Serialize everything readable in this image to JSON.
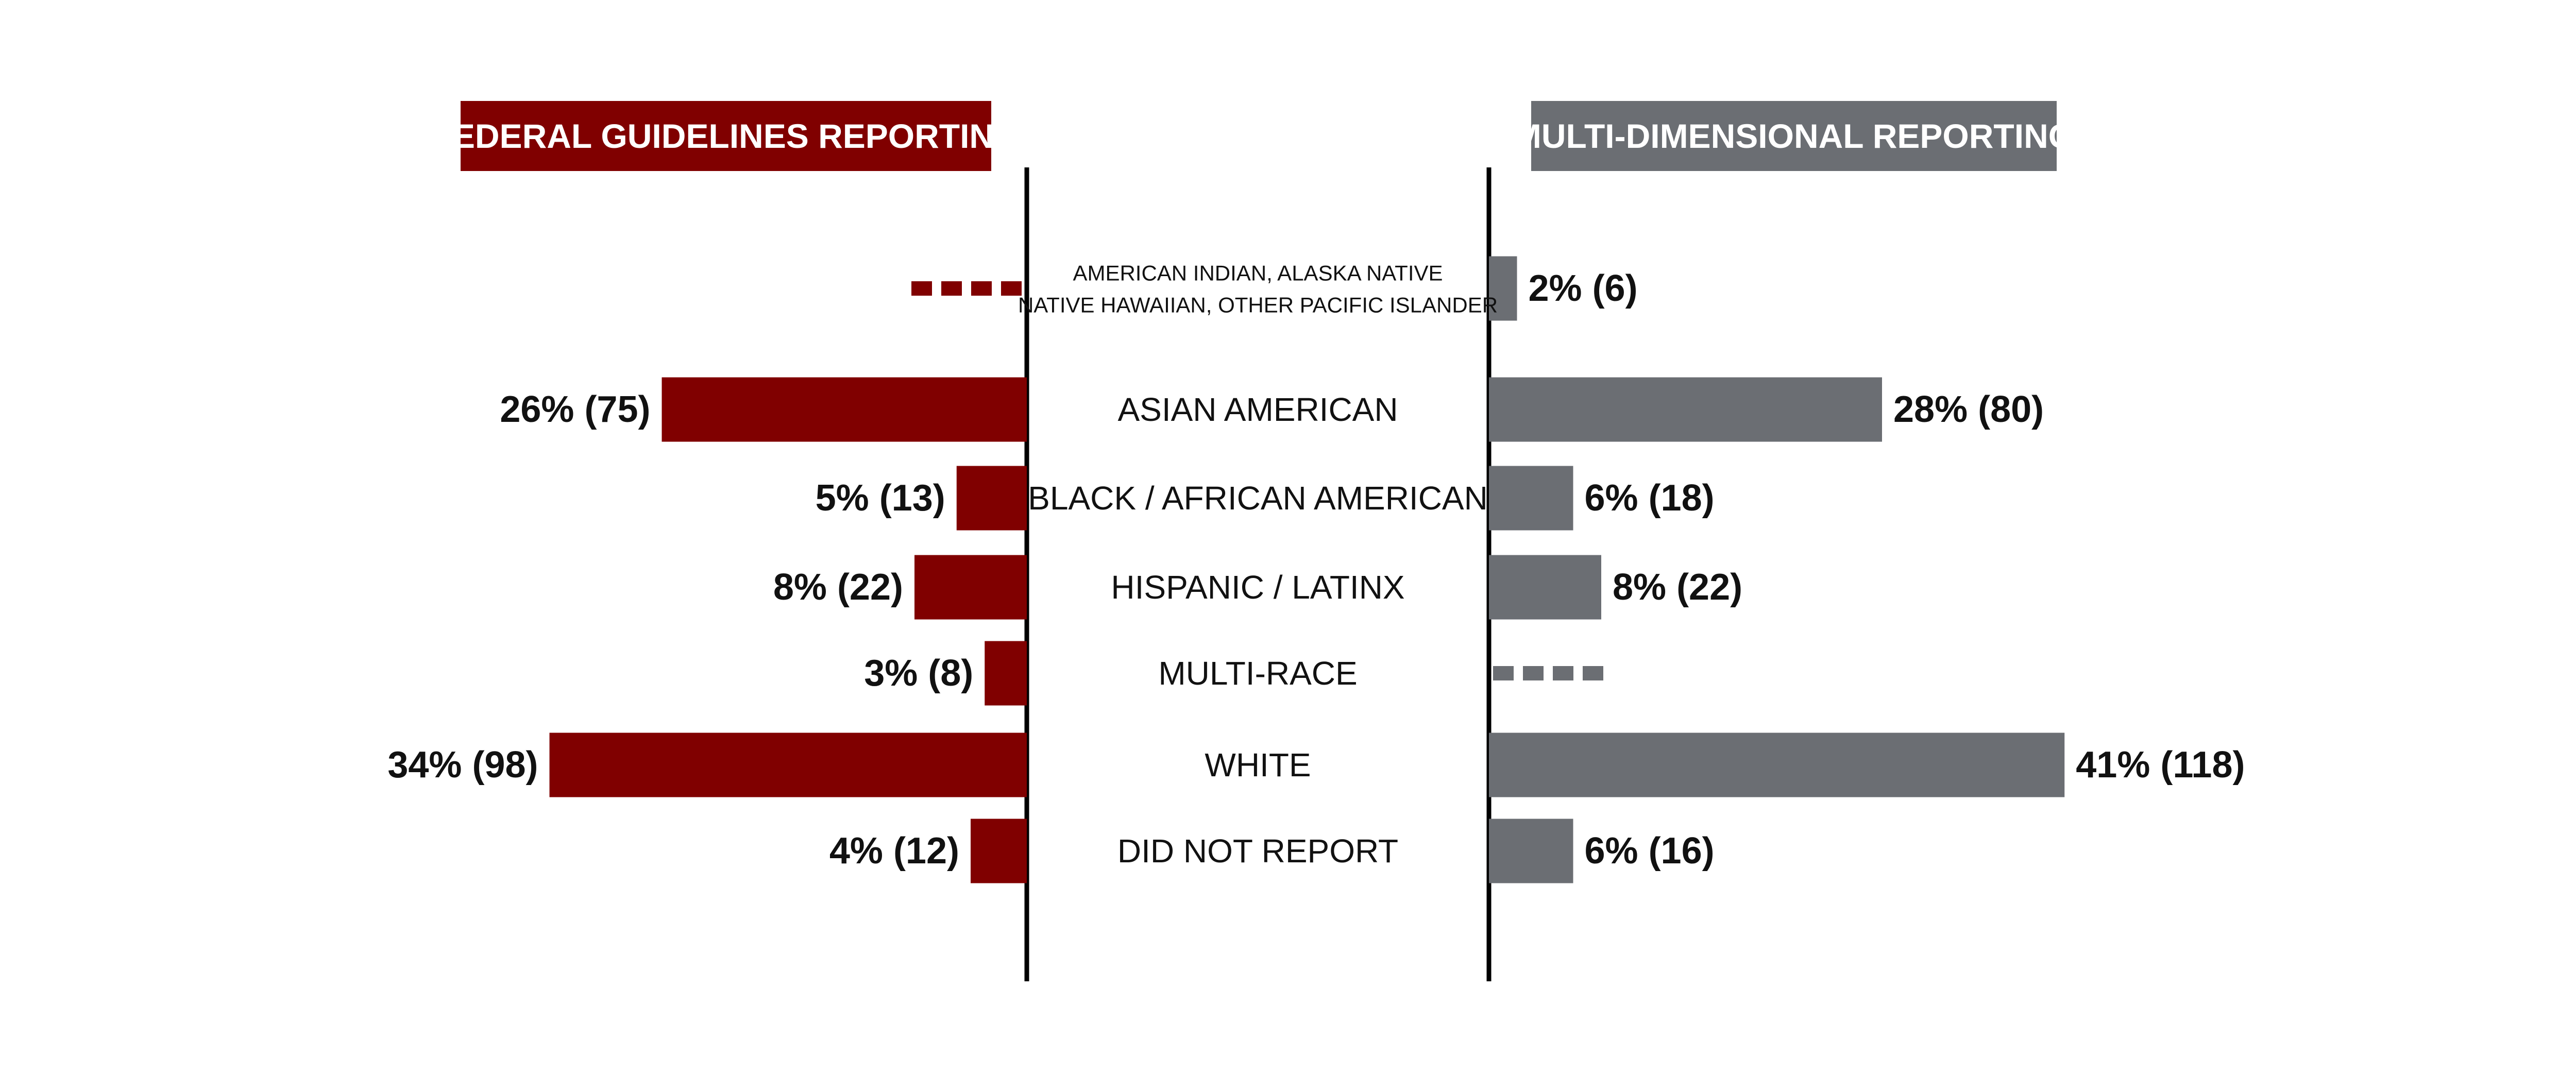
{
  "chart_data": {
    "type": "bar",
    "orientation": "horizontal-butterfly",
    "categories": [
      [
        "AMERICAN INDIAN, ALASKA NATIVE",
        "NATIVE HAWAIIAN, OTHER PACIFIC ISLANDER"
      ],
      [
        "ASIAN AMERICAN"
      ],
      [
        "BLACK / AFRICAN AMERICAN"
      ],
      [
        "HISPANIC / LATINX"
      ],
      [
        "MULTI-RACE"
      ],
      [
        "WHITE"
      ],
      [
        "DID NOT REPORT"
      ]
    ],
    "series": [
      {
        "name": "FEDERAL GUIDELINES REPORTING",
        "side": "left",
        "color": "#800000",
        "values": [
          null,
          26,
          5,
          8,
          3,
          34,
          4
        ],
        "labels": [
          "",
          "26% (75)",
          "5% (13)",
          "8% (22)",
          "3% (8)",
          "34% (98)",
          "4% (12)"
        ]
      },
      {
        "name": "MULTI-DIMENSIONAL REPORTING",
        "side": "right",
        "color": "#6b6e73",
        "values": [
          2,
          28,
          6,
          8,
          null,
          41,
          6
        ],
        "labels": [
          "2% (6)",
          "28% (80)",
          "6% (18)",
          "8% (22)",
          "",
          "41% (118)",
          "6% (16)"
        ]
      }
    ],
    "null_marker": "dashed",
    "axis_color": "#000000",
    "grid": false
  }
}
